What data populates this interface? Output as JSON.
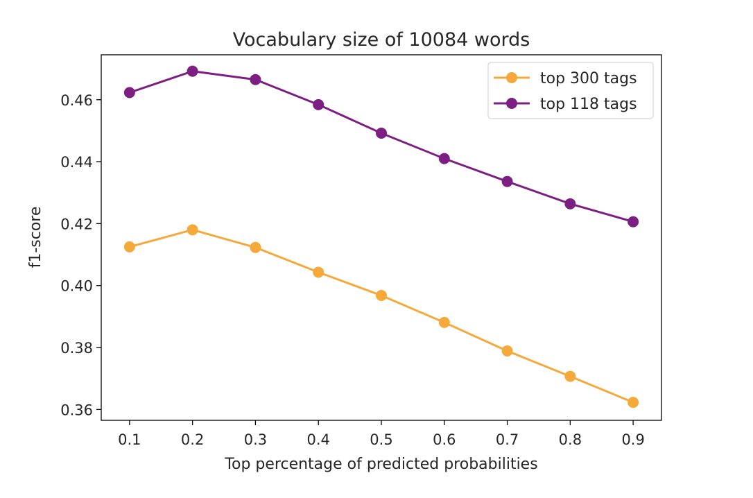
{
  "chart_data": {
    "type": "line",
    "title": "Vocabulary size of 10084 words",
    "xlabel": "Top percentage of predicted probabilities",
    "ylabel": "f1-score",
    "x": [
      0.1,
      0.2,
      0.3,
      0.4,
      0.5,
      0.6,
      0.7,
      0.8,
      0.9
    ],
    "x_ticks": [
      "0.1",
      "0.2",
      "0.3",
      "0.4",
      "0.5",
      "0.6",
      "0.7",
      "0.8",
      "0.9"
    ],
    "y_ticks": [
      "0.36",
      "0.38",
      "0.40",
      "0.42",
      "0.44",
      "0.46"
    ],
    "xlim": [
      0.055,
      0.945
    ],
    "ylim": [
      0.3565,
      0.4745
    ],
    "grid": false,
    "legend_position": "top-right",
    "series": [
      {
        "name": "top 300 tags",
        "color": "#F5A93B",
        "marker": "circle",
        "values": [
          0.4125,
          0.418,
          0.4123,
          0.4043,
          0.3968,
          0.3881,
          0.3789,
          0.3707,
          0.3623
        ]
      },
      {
        "name": "top 118 tags",
        "color": "#7D1E82",
        "marker": "circle",
        "values": [
          0.4623,
          0.4692,
          0.4665,
          0.4584,
          0.4492,
          0.441,
          0.4336,
          0.4264,
          0.4206
        ]
      }
    ]
  }
}
